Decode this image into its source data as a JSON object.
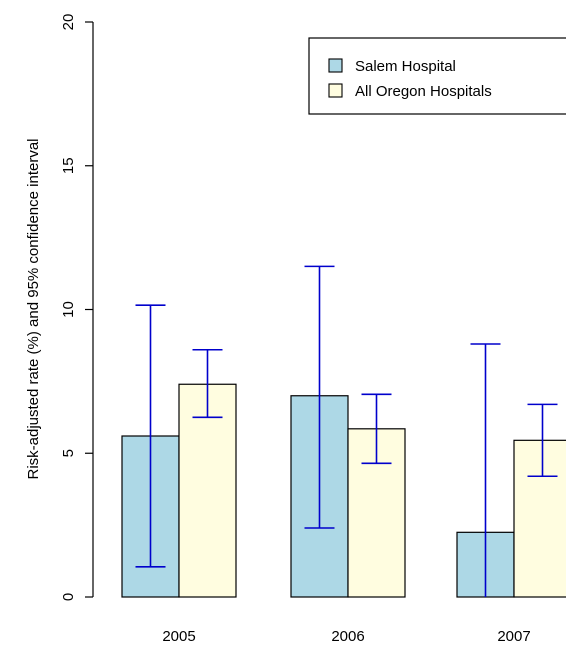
{
  "chart_data": {
    "type": "bar",
    "title": "",
    "xlabel": "",
    "ylabel": "Risk-adjusted rate (%) and 95% confidence interval",
    "categories": [
      "2005",
      "2006",
      "2007"
    ],
    "ylim": [
      0,
      20
    ],
    "yticks": [
      "0",
      "5",
      "10",
      "15",
      "20"
    ],
    "grid": false,
    "legend_position": "top-right",
    "series": [
      {
        "name": "Salem Hospital",
        "color": "#add8e6",
        "values": [
          5.6,
          7.0,
          2.25
        ],
        "ci_low": [
          1.05,
          2.4,
          0.0
        ],
        "ci_high": [
          10.15,
          11.5,
          8.8
        ]
      },
      {
        "name": "All Oregon Hospitals",
        "color": "#fffde0",
        "values": [
          7.4,
          5.85,
          5.45
        ],
        "ci_low": [
          6.25,
          4.65,
          4.2
        ],
        "ci_high": [
          8.6,
          7.05,
          6.7
        ]
      }
    ],
    "error_bar_color": "#0000cc"
  }
}
